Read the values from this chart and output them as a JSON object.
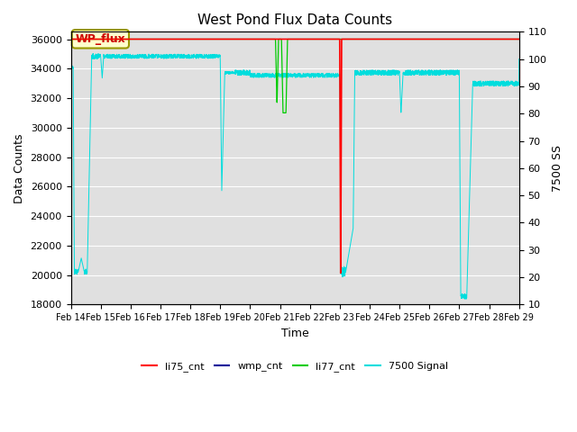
{
  "title": "West Pond Flux Data Counts",
  "xlabel": "Time",
  "ylabel_left": "Data Counts",
  "ylabel_right": "7500 SS",
  "ylim_left": [
    18000,
    36500
  ],
  "ylim_right": [
    10,
    110
  ],
  "yticks_left": [
    18000,
    20000,
    22000,
    24000,
    26000,
    28000,
    30000,
    32000,
    34000,
    36000
  ],
  "yticks_right": [
    10,
    20,
    30,
    40,
    50,
    60,
    70,
    80,
    90,
    100,
    110
  ],
  "xtick_labels": [
    "Feb 14",
    "Feb 15",
    "Feb 16",
    "Feb 17",
    "Feb 18",
    "Feb 19",
    "Feb 20",
    "Feb 21",
    "Feb 22",
    "Feb 23",
    "Feb 24",
    "Feb 25",
    "Feb 26",
    "Feb 27",
    "Feb 28",
    "Feb 29"
  ],
  "bg_color": "#e0e0e0",
  "grid_color": "#ffffff",
  "wp_flux_label": "WP_flux",
  "wp_flux_label_color": "#cc0000",
  "wp_flux_label_bg": "#ffffcc",
  "wp_flux_border_color": "#999900",
  "color_li75": "#ff0000",
  "color_wmp": "#000099",
  "color_li77": "#00cc00",
  "color_7500": "#00dddd",
  "li77_base": 36000,
  "wmp_base": 36000,
  "li75_base": 36000
}
